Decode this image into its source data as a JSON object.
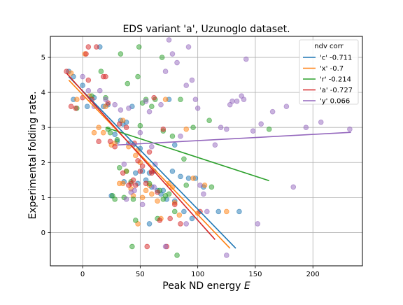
{
  "chart_data": {
    "type": "scatter",
    "title": "EDS variant 'a', Uzunoglo dataset.",
    "xlabel": "Peak ND energy E",
    "xlabel_main": "Peak ND energy ",
    "xlabel_var": "E",
    "ylabel": "Experimental folding rate.",
    "xlim": [
      -28,
      243
    ],
    "ylim": [
      -0.95,
      5.6
    ],
    "xticks": [
      0,
      50,
      100,
      150,
      200
    ],
    "yticks": [
      0,
      1,
      2,
      3,
      4,
      5
    ],
    "grid": true,
    "legend": {
      "title": "ndv corr",
      "placement": "top-right"
    },
    "series": [
      {
        "name": "'c' -0.711",
        "color": "#1f77b4",
        "points": [
          [
            -12,
            4.6
          ],
          [
            -8,
            4.45
          ],
          [
            0,
            4.2
          ],
          [
            4,
            3.6
          ],
          [
            10,
            3.85
          ],
          [
            15,
            5.3
          ],
          [
            18,
            3.6
          ],
          [
            22,
            3.65
          ],
          [
            28,
            2.8
          ],
          [
            30,
            2.6
          ],
          [
            33,
            3.2
          ],
          [
            35,
            3.1
          ],
          [
            38,
            3.15
          ],
          [
            40,
            2.55
          ],
          [
            44,
            2.5
          ],
          [
            46,
            1.7
          ],
          [
            48,
            1.4
          ],
          [
            50,
            2.4
          ],
          [
            52,
            1.75
          ],
          [
            55,
            1.5
          ],
          [
            58,
            1.7
          ],
          [
            60,
            1.3
          ],
          [
            62,
            1.75
          ],
          [
            65,
            1.2
          ],
          [
            68,
            1.1
          ],
          [
            70,
            1.2
          ],
          [
            73,
            0.95
          ],
          [
            75,
            3.8
          ],
          [
            78,
            1.75
          ],
          [
            80,
            2.5
          ],
          [
            85,
            1.6
          ],
          [
            88,
            0.6
          ],
          [
            92,
            1.55
          ],
          [
            95,
            0.4
          ],
          [
            98,
            1.55
          ],
          [
            105,
            1.3
          ],
          [
            118,
            0.6
          ],
          [
            136,
            0.6
          ],
          [
            -8,
            3.8
          ],
          [
            25,
            1.05
          ],
          [
            36,
            1.45
          ],
          [
            58,
            0.25
          ],
          [
            80,
            0.9
          ],
          [
            43,
            3.6
          ]
        ],
        "fit": [
          [
            -12,
            4.45
          ],
          [
            133,
            -0.45
          ]
        ]
      },
      {
        "name": "'x' -0.7",
        "color": "#ff7f0e",
        "points": [
          [
            -10,
            4.55
          ],
          [
            -5,
            3.8
          ],
          [
            2,
            5.1
          ],
          [
            6,
            3.9
          ],
          [
            10,
            2.85
          ],
          [
            14,
            3.0
          ],
          [
            18,
            2.85
          ],
          [
            20,
            3.6
          ],
          [
            25,
            2.5
          ],
          [
            28,
            2.55
          ],
          [
            32,
            1.4
          ],
          [
            35,
            3.2
          ],
          [
            38,
            1.75
          ],
          [
            40,
            2.45
          ],
          [
            42,
            1.25
          ],
          [
            44,
            1.05
          ],
          [
            46,
            2.2
          ],
          [
            48,
            2.35
          ],
          [
            50,
            2.0
          ],
          [
            52,
            1.0
          ],
          [
            55,
            1.2
          ],
          [
            58,
            1.35
          ],
          [
            60,
            1.1
          ],
          [
            65,
            0.9
          ],
          [
            68,
            0.4
          ],
          [
            72,
            3.8
          ],
          [
            75,
            1.4
          ],
          [
            78,
            1.3
          ],
          [
            80,
            0.85
          ],
          [
            84,
            0.5
          ],
          [
            90,
            2.95
          ],
          [
            96,
            1.55
          ],
          [
            100,
            0.55
          ],
          [
            106,
            1.35
          ],
          [
            125,
            0.6
          ],
          [
            48,
            0.25
          ],
          [
            35,
            1.4
          ]
        ],
        "fit": [
          [
            -12,
            4.35
          ],
          [
            128,
            -0.45
          ]
        ]
      },
      {
        "name": "'r' -0.214",
        "color": "#2ca02c",
        "points": [
          [
            -5,
            3.55
          ],
          [
            8,
            3.9
          ],
          [
            16,
            4.6
          ],
          [
            20,
            3.85
          ],
          [
            22,
            2.95
          ],
          [
            24,
            2.85
          ],
          [
            26,
            1.05
          ],
          [
            28,
            0.95
          ],
          [
            30,
            2.65
          ],
          [
            32,
            1.85
          ],
          [
            33,
            5.1
          ],
          [
            36,
            1.0
          ],
          [
            38,
            1.75
          ],
          [
            39,
            4.25
          ],
          [
            42,
            1.45
          ],
          [
            44,
            0.95
          ],
          [
            46,
            0.35
          ],
          [
            48,
            4.45
          ],
          [
            49,
            5.3
          ],
          [
            50,
            3.05
          ],
          [
            52,
            3.7
          ],
          [
            55,
            3.8
          ],
          [
            58,
            1.4
          ],
          [
            60,
            3.6
          ],
          [
            63,
            3.8
          ],
          [
            67,
            1.2
          ],
          [
            69,
            5.0
          ],
          [
            70,
            2.9
          ],
          [
            72,
            1.05
          ],
          [
            75,
            1.1
          ],
          [
            78,
            2.75
          ],
          [
            80,
            0.6
          ],
          [
            82,
            -0.65
          ],
          [
            85,
            3.8
          ],
          [
            88,
            2.1
          ],
          [
            90,
            1.35
          ],
          [
            96,
            3.0
          ],
          [
            110,
            3.2
          ],
          [
            112,
            1.3
          ],
          [
            162,
            2.95
          ],
          [
            43,
            -0.4
          ],
          [
            70,
            0.95
          ],
          [
            65,
            0.4
          ]
        ],
        "fit": [
          [
            20,
            3.0
          ],
          [
            162,
            1.48
          ]
        ]
      },
      {
        "name": "'a' -0.727",
        "color": "#d62728",
        "points": [
          [
            -14,
            4.6
          ],
          [
            -10,
            3.6
          ],
          [
            -6,
            3.55
          ],
          [
            0,
            3.85
          ],
          [
            3,
            5.1
          ],
          [
            5,
            5.3
          ],
          [
            8,
            3.8
          ],
          [
            12,
            5.3
          ],
          [
            14,
            2.6
          ],
          [
            18,
            4.45
          ],
          [
            20,
            4.45
          ],
          [
            22,
            3.7
          ],
          [
            24,
            2.6
          ],
          [
            28,
            2.45
          ],
          [
            32,
            3.1
          ],
          [
            35,
            1.7
          ],
          [
            38,
            3.0
          ],
          [
            40,
            1.35
          ],
          [
            42,
            1.4
          ],
          [
            44,
            1.5
          ],
          [
            46,
            1.35
          ],
          [
            48,
            2.05
          ],
          [
            50,
            1.75
          ],
          [
            52,
            1.9
          ],
          [
            55,
            1.4
          ],
          [
            56,
            -0.4
          ],
          [
            58,
            2.3
          ],
          [
            60,
            1.7
          ],
          [
            62,
            3.85
          ],
          [
            65,
            1.15
          ],
          [
            67,
            0.35
          ],
          [
            70,
            2.95
          ],
          [
            73,
            -0.4
          ],
          [
            76,
            0.4
          ],
          [
            80,
            0.8
          ],
          [
            85,
            0.25
          ],
          [
            102,
            0.6
          ],
          [
            5,
            4.35
          ],
          [
            45,
            2.55
          ],
          [
            60,
            1.75
          ]
        ],
        "fit": [
          [
            -14,
            4.55
          ],
          [
            115,
            -0.2
          ]
        ]
      },
      {
        "name": "'y' 0.066",
        "color": "#9467bd",
        "points": [
          [
            0,
            4.45
          ],
          [
            5,
            4.05
          ],
          [
            10,
            3.6
          ],
          [
            15,
            4.05
          ],
          [
            20,
            3.8
          ],
          [
            28,
            3.65
          ],
          [
            33,
            3.5
          ],
          [
            36,
            1.95
          ],
          [
            38,
            0.95
          ],
          [
            40,
            3.55
          ],
          [
            42,
            1.15
          ],
          [
            45,
            1.2
          ],
          [
            52,
            0.8
          ],
          [
            55,
            3.75
          ],
          [
            58,
            3.45
          ],
          [
            60,
            2.45
          ],
          [
            62,
            1.3
          ],
          [
            68,
            3.65
          ],
          [
            72,
            4.6
          ],
          [
            75,
            5.5
          ],
          [
            78,
            5.1
          ],
          [
            82,
            4.85
          ],
          [
            85,
            2.75
          ],
          [
            90,
            4.2
          ],
          [
            92,
            5.3
          ],
          [
            95,
            4.35
          ],
          [
            98,
            3.8
          ],
          [
            100,
            3.55
          ],
          [
            102,
            1.35
          ],
          [
            105,
            1.1
          ],
          [
            108,
            0.6
          ],
          [
            115,
            2.5
          ],
          [
            120,
            3.0
          ],
          [
            125,
            2.95
          ],
          [
            128,
            3.65
          ],
          [
            130,
            3.75
          ],
          [
            134,
            3.75
          ],
          [
            138,
            3.9
          ],
          [
            140,
            3.8
          ],
          [
            142,
            4.95
          ],
          [
            148,
            2.9
          ],
          [
            152,
            0.25
          ],
          [
            155,
            3.1
          ],
          [
            165,
            3.45
          ],
          [
            177,
            3.6
          ],
          [
            183,
            1.3
          ],
          [
            194,
            3.0
          ],
          [
            207,
            3.15
          ],
          [
            232,
            2.95
          ],
          [
            50,
            2.85
          ],
          [
            125,
            -0.65
          ],
          [
            72,
            -0.4
          ],
          [
            90,
            0.25
          ],
          [
            63,
            1.95
          ]
        ],
        "fit": [
          [
            30,
            2.5
          ],
          [
            233,
            2.86
          ]
        ]
      }
    ]
  }
}
